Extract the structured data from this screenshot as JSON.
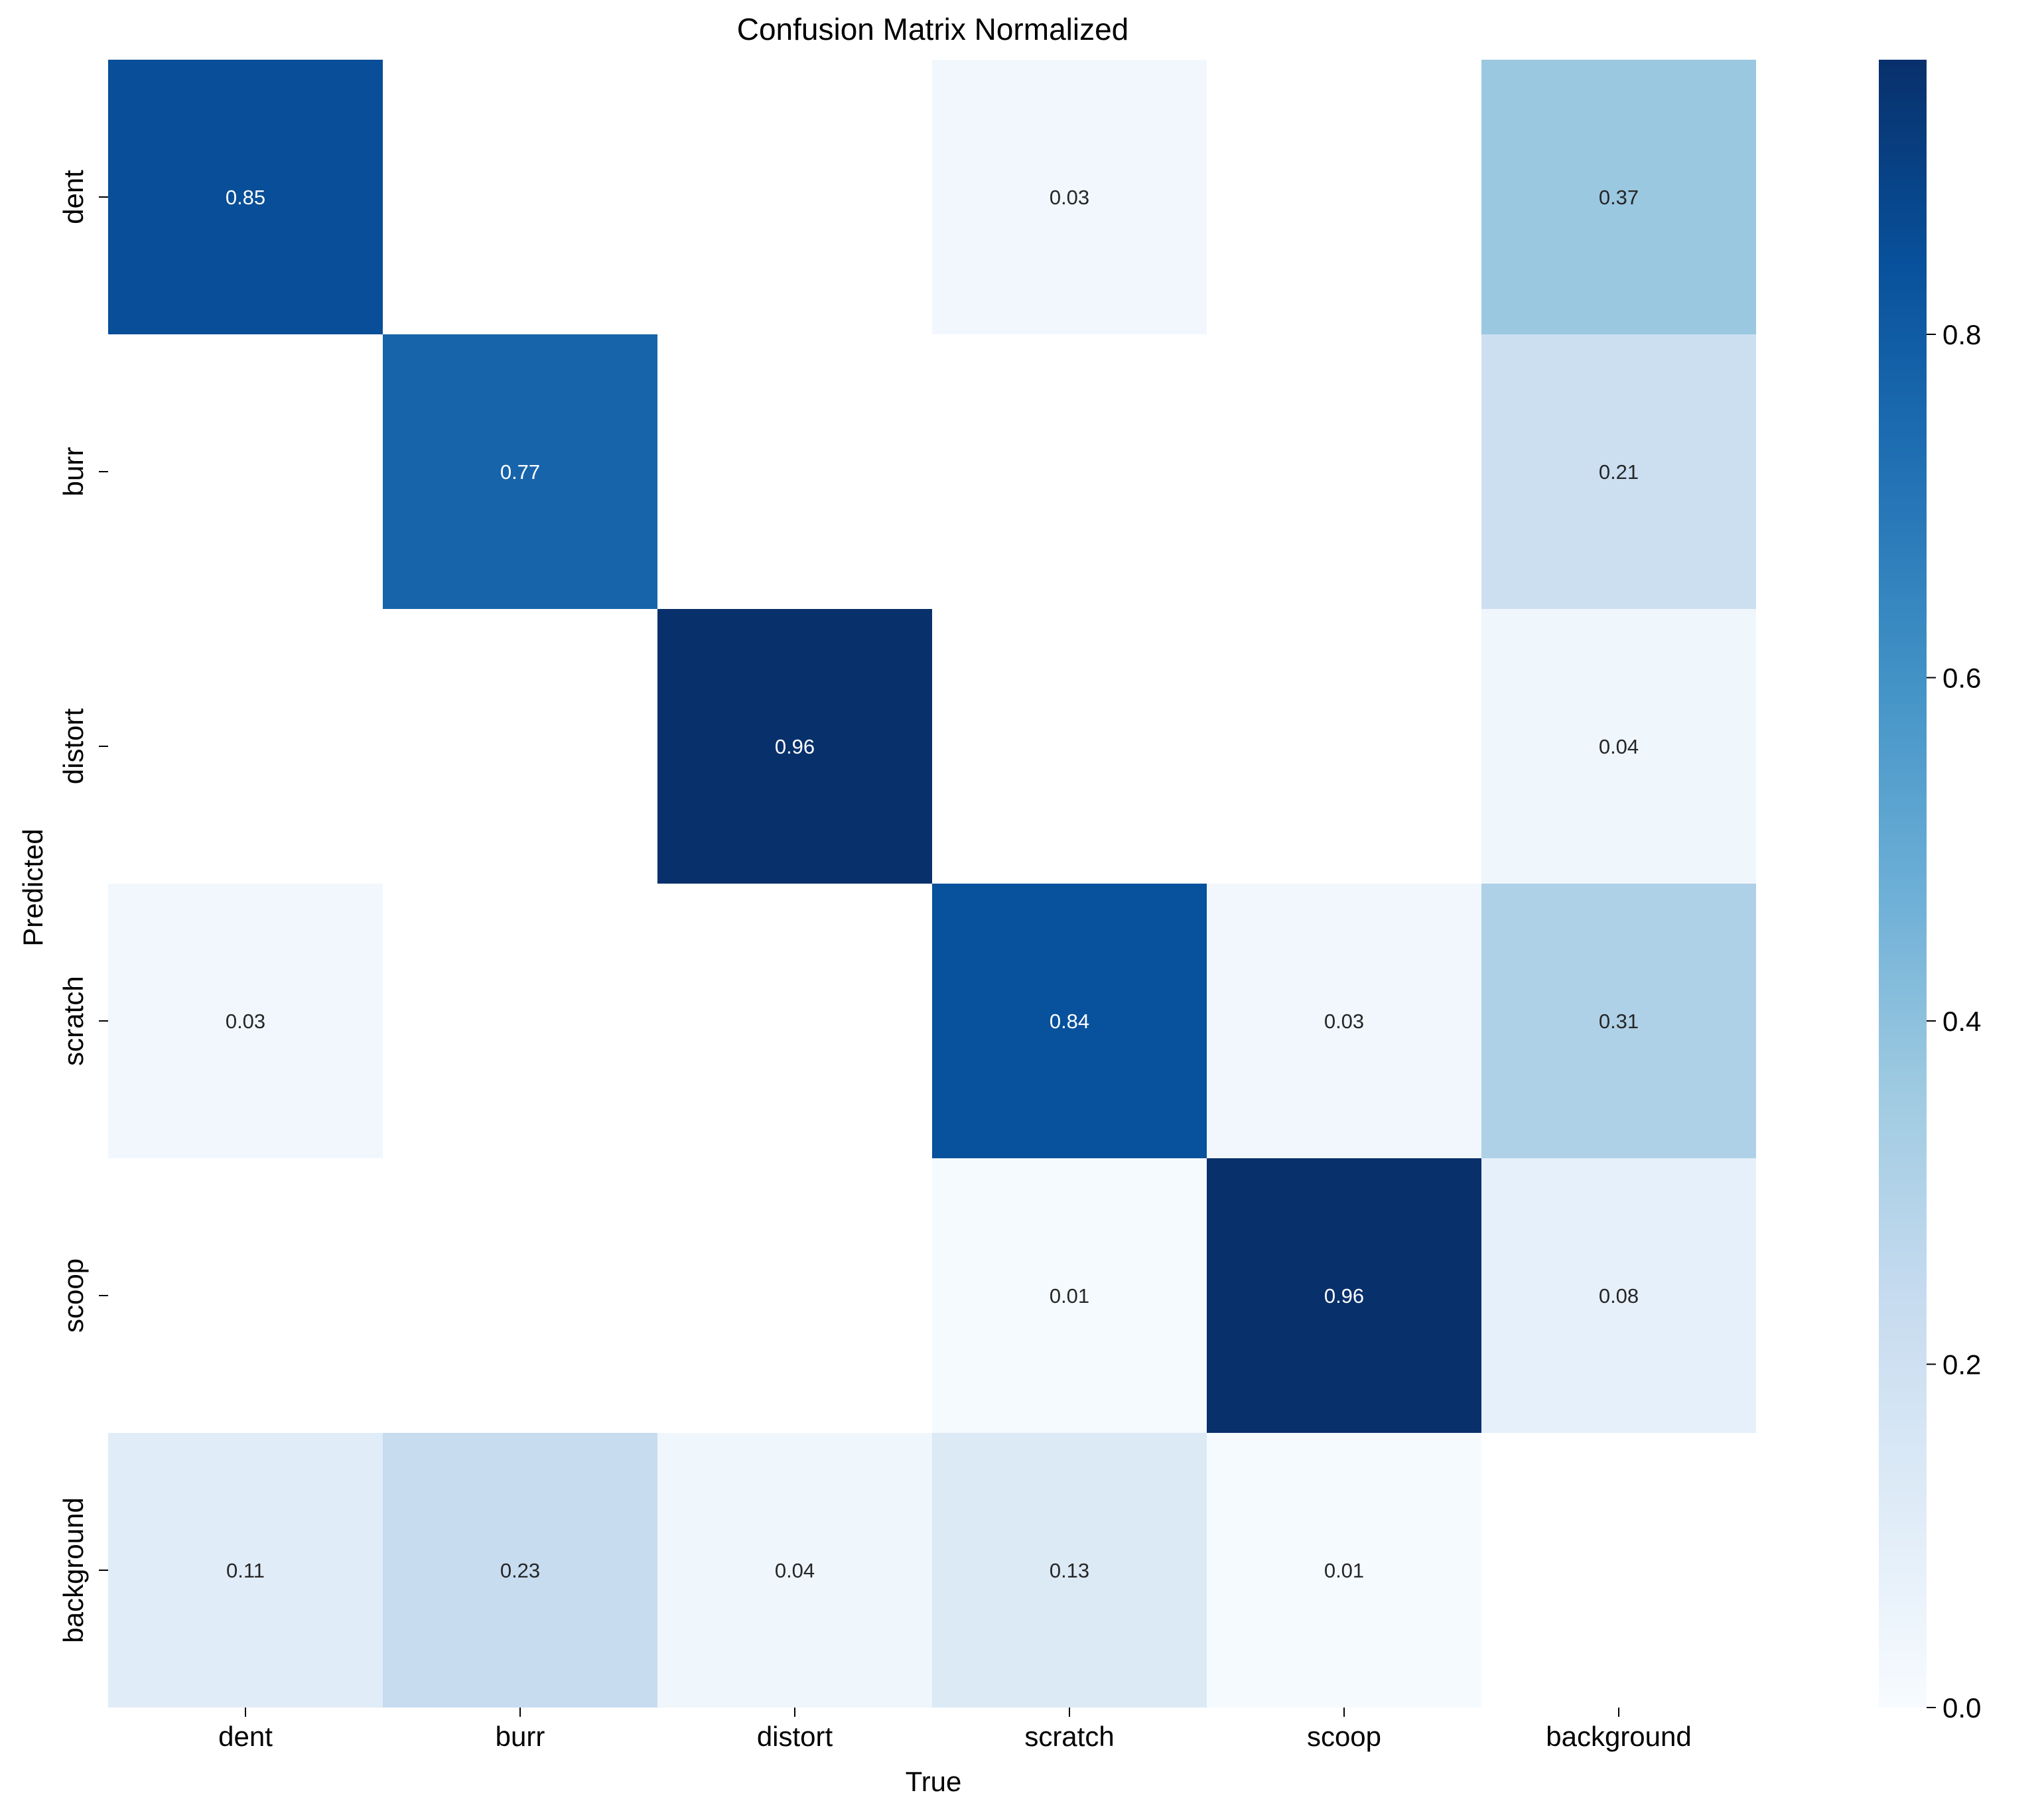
{
  "chart_data": {
    "type": "heatmap",
    "title": "Confusion Matrix Normalized",
    "xlabel": "True",
    "ylabel": "Predicted",
    "x_categories": [
      "dent",
      "burr",
      "distort",
      "scratch",
      "scoop",
      "background"
    ],
    "y_categories": [
      "dent",
      "burr",
      "distort",
      "scratch",
      "scoop",
      "background"
    ],
    "values": [
      [
        0.85,
        null,
        null,
        0.03,
        null,
        0.37
      ],
      [
        null,
        0.77,
        null,
        null,
        null,
        0.21
      ],
      [
        null,
        null,
        0.96,
        null,
        null,
        0.04
      ],
      [
        0.03,
        null,
        null,
        0.84,
        0.03,
        0.31
      ],
      [
        null,
        null,
        null,
        0.01,
        0.96,
        0.08
      ],
      [
        0.11,
        0.23,
        0.04,
        0.13,
        0.01,
        null
      ]
    ],
    "colormap": "Blues",
    "colorbar": {
      "range": [
        0.0,
        0.96
      ],
      "ticks": [
        0.0,
        0.2,
        0.4,
        0.6,
        0.8
      ],
      "tick_labels": [
        "0.0",
        "0.2",
        "0.4",
        "0.6",
        "0.8"
      ]
    },
    "colors": {
      "low": "#f7fbff",
      "mid": "#6baed6",
      "high": "#08306b"
    }
  }
}
